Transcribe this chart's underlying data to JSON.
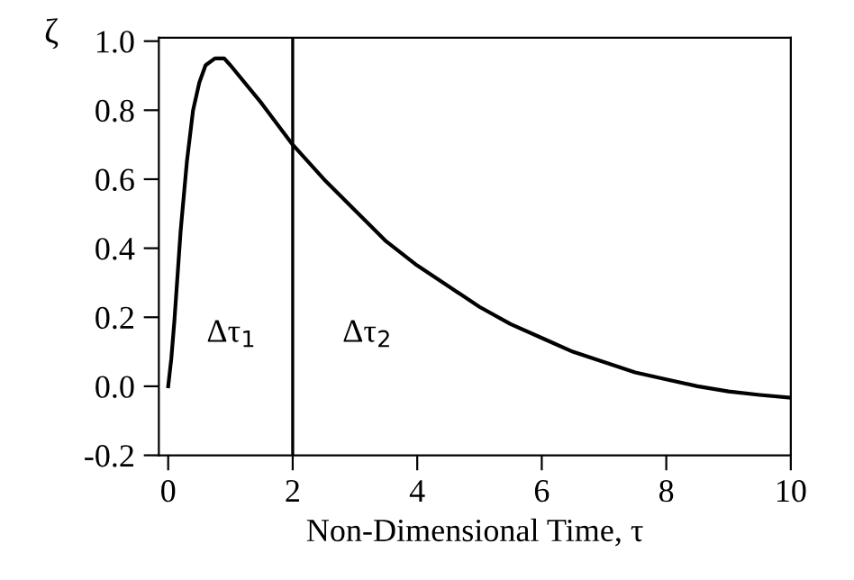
{
  "chart_data": {
    "type": "line",
    "xlabel": "Non-Dimensional Time, τ",
    "ylabel": "ζ",
    "x": [
      0,
      0.05,
      0.1,
      0.2,
      0.3,
      0.4,
      0.5,
      0.6,
      0.75,
      0.9,
      1.0,
      1.5,
      2.0,
      2.5,
      3.0,
      3.5,
      4.0,
      4.5,
      5.0,
      5.5,
      6.0,
      6.5,
      7.0,
      7.5,
      8.0,
      8.5,
      9.0,
      9.5,
      10.0
    ],
    "series": [
      {
        "color": "#000000",
        "values": [
          0,
          0.08,
          0.19,
          0.45,
          0.65,
          0.8,
          0.88,
          0.93,
          0.95,
          0.95,
          0.93,
          0.82,
          0.7,
          0.6,
          0.51,
          0.42,
          0.35,
          0.29,
          0.23,
          0.18,
          0.14,
          0.1,
          0.07,
          0.04,
          0.02,
          0.0,
          -0.015,
          -0.025,
          -0.033
        ]
      }
    ],
    "xlim": [
      -0.15,
      10
    ],
    "ylim": [
      -0.2,
      1.01
    ],
    "xticks": [
      0,
      2,
      4,
      6,
      8,
      10
    ],
    "yticks": [
      {
        "value": -0.2,
        "label": "-0.2"
      },
      {
        "value": 0,
        "label": "0.0"
      },
      {
        "value": 0.2,
        "label": "0.2"
      },
      {
        "value": 0.4,
        "label": "0.4"
      },
      {
        "value": 0.6,
        "label": "0.6"
      },
      {
        "value": 0.8,
        "label": "0.8"
      },
      {
        "value": 1.0,
        "label": "1.0"
      }
    ],
    "ref_lines": [
      {
        "axis": "x",
        "value": 2,
        "color": "#000000"
      }
    ],
    "annotations": [
      "Δτ$_{1}$",
      "Δτ$_{2}$"
    ],
    "grid": false,
    "legend": false,
    "marker": "none",
    "line_style": "solid"
  }
}
